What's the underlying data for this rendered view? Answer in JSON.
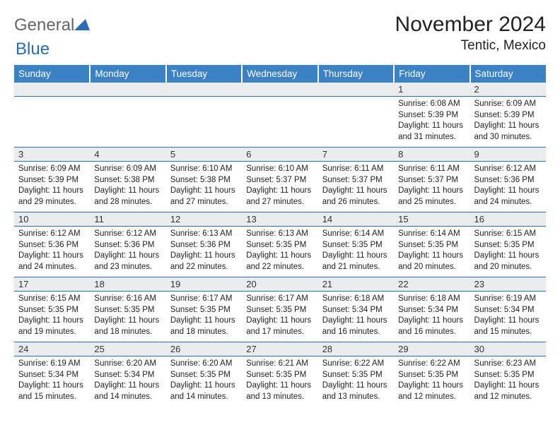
{
  "branding": {
    "text1": "General",
    "text2": "Blue",
    "triangle_color": "#2a6db5"
  },
  "title": "November 2024",
  "location": "Tentic, Mexico",
  "colors": {
    "header_bg": "#3b82c4",
    "header_fg": "#ffffff",
    "daynum_bg": "#e9edf0",
    "rule": "#2a6db5",
    "text": "#222222"
  },
  "typography": {
    "title_fontsize": 30,
    "location_fontsize": 19,
    "header_fontsize": 13.5,
    "daynum_fontsize": 13,
    "detail_fontsize": 11.5
  },
  "week_headers": [
    "Sunday",
    "Monday",
    "Tuesday",
    "Wednesday",
    "Thursday",
    "Friday",
    "Saturday"
  ],
  "weeks": [
    [
      null,
      null,
      null,
      null,
      null,
      {
        "day": "1",
        "sunrise": "Sunrise: 6:08 AM",
        "sunset": "Sunset: 5:39 PM",
        "daylight": "Daylight: 11 hours and 31 minutes."
      },
      {
        "day": "2",
        "sunrise": "Sunrise: 6:09 AM",
        "sunset": "Sunset: 5:39 PM",
        "daylight": "Daylight: 11 hours and 30 minutes."
      }
    ],
    [
      {
        "day": "3",
        "sunrise": "Sunrise: 6:09 AM",
        "sunset": "Sunset: 5:39 PM",
        "daylight": "Daylight: 11 hours and 29 minutes."
      },
      {
        "day": "4",
        "sunrise": "Sunrise: 6:09 AM",
        "sunset": "Sunset: 5:38 PM",
        "daylight": "Daylight: 11 hours and 28 minutes."
      },
      {
        "day": "5",
        "sunrise": "Sunrise: 6:10 AM",
        "sunset": "Sunset: 5:38 PM",
        "daylight": "Daylight: 11 hours and 27 minutes."
      },
      {
        "day": "6",
        "sunrise": "Sunrise: 6:10 AM",
        "sunset": "Sunset: 5:37 PM",
        "daylight": "Daylight: 11 hours and 27 minutes."
      },
      {
        "day": "7",
        "sunrise": "Sunrise: 6:11 AM",
        "sunset": "Sunset: 5:37 PM",
        "daylight": "Daylight: 11 hours and 26 minutes."
      },
      {
        "day": "8",
        "sunrise": "Sunrise: 6:11 AM",
        "sunset": "Sunset: 5:37 PM",
        "daylight": "Daylight: 11 hours and 25 minutes."
      },
      {
        "day": "9",
        "sunrise": "Sunrise: 6:12 AM",
        "sunset": "Sunset: 5:36 PM",
        "daylight": "Daylight: 11 hours and 24 minutes."
      }
    ],
    [
      {
        "day": "10",
        "sunrise": "Sunrise: 6:12 AM",
        "sunset": "Sunset: 5:36 PM",
        "daylight": "Daylight: 11 hours and 24 minutes."
      },
      {
        "day": "11",
        "sunrise": "Sunrise: 6:12 AM",
        "sunset": "Sunset: 5:36 PM",
        "daylight": "Daylight: 11 hours and 23 minutes."
      },
      {
        "day": "12",
        "sunrise": "Sunrise: 6:13 AM",
        "sunset": "Sunset: 5:36 PM",
        "daylight": "Daylight: 11 hours and 22 minutes."
      },
      {
        "day": "13",
        "sunrise": "Sunrise: 6:13 AM",
        "sunset": "Sunset: 5:35 PM",
        "daylight": "Daylight: 11 hours and 22 minutes."
      },
      {
        "day": "14",
        "sunrise": "Sunrise: 6:14 AM",
        "sunset": "Sunset: 5:35 PM",
        "daylight": "Daylight: 11 hours and 21 minutes."
      },
      {
        "day": "15",
        "sunrise": "Sunrise: 6:14 AM",
        "sunset": "Sunset: 5:35 PM",
        "daylight": "Daylight: 11 hours and 20 minutes."
      },
      {
        "day": "16",
        "sunrise": "Sunrise: 6:15 AM",
        "sunset": "Sunset: 5:35 PM",
        "daylight": "Daylight: 11 hours and 20 minutes."
      }
    ],
    [
      {
        "day": "17",
        "sunrise": "Sunrise: 6:15 AM",
        "sunset": "Sunset: 5:35 PM",
        "daylight": "Daylight: 11 hours and 19 minutes."
      },
      {
        "day": "18",
        "sunrise": "Sunrise: 6:16 AM",
        "sunset": "Sunset: 5:35 PM",
        "daylight": "Daylight: 11 hours and 18 minutes."
      },
      {
        "day": "19",
        "sunrise": "Sunrise: 6:17 AM",
        "sunset": "Sunset: 5:35 PM",
        "daylight": "Daylight: 11 hours and 18 minutes."
      },
      {
        "day": "20",
        "sunrise": "Sunrise: 6:17 AM",
        "sunset": "Sunset: 5:35 PM",
        "daylight": "Daylight: 11 hours and 17 minutes."
      },
      {
        "day": "21",
        "sunrise": "Sunrise: 6:18 AM",
        "sunset": "Sunset: 5:34 PM",
        "daylight": "Daylight: 11 hours and 16 minutes."
      },
      {
        "day": "22",
        "sunrise": "Sunrise: 6:18 AM",
        "sunset": "Sunset: 5:34 PM",
        "daylight": "Daylight: 11 hours and 16 minutes."
      },
      {
        "day": "23",
        "sunrise": "Sunrise: 6:19 AM",
        "sunset": "Sunset: 5:34 PM",
        "daylight": "Daylight: 11 hours and 15 minutes."
      }
    ],
    [
      {
        "day": "24",
        "sunrise": "Sunrise: 6:19 AM",
        "sunset": "Sunset: 5:34 PM",
        "daylight": "Daylight: 11 hours and 15 minutes."
      },
      {
        "day": "25",
        "sunrise": "Sunrise: 6:20 AM",
        "sunset": "Sunset: 5:34 PM",
        "daylight": "Daylight: 11 hours and 14 minutes."
      },
      {
        "day": "26",
        "sunrise": "Sunrise: 6:20 AM",
        "sunset": "Sunset: 5:35 PM",
        "daylight": "Daylight: 11 hours and 14 minutes."
      },
      {
        "day": "27",
        "sunrise": "Sunrise: 6:21 AM",
        "sunset": "Sunset: 5:35 PM",
        "daylight": "Daylight: 11 hours and 13 minutes."
      },
      {
        "day": "28",
        "sunrise": "Sunrise: 6:22 AM",
        "sunset": "Sunset: 5:35 PM",
        "daylight": "Daylight: 11 hours and 13 minutes."
      },
      {
        "day": "29",
        "sunrise": "Sunrise: 6:22 AM",
        "sunset": "Sunset: 5:35 PM",
        "daylight": "Daylight: 11 hours and 12 minutes."
      },
      {
        "day": "30",
        "sunrise": "Sunrise: 6:23 AM",
        "sunset": "Sunset: 5:35 PM",
        "daylight": "Daylight: 11 hours and 12 minutes."
      }
    ]
  ]
}
